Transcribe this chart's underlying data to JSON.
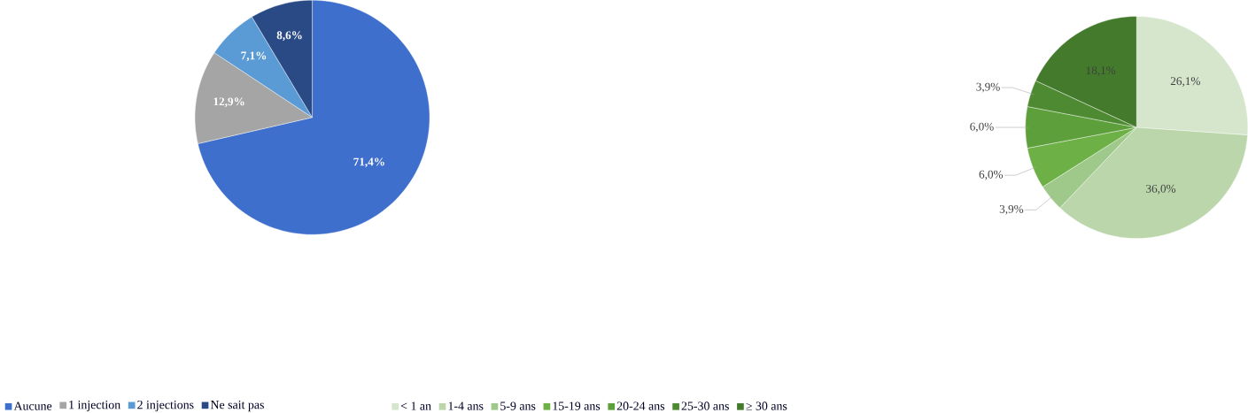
{
  "chart_data": [
    {
      "type": "pie",
      "categories": [
        "Aucune",
        "1 injection",
        "2 injections",
        "Ne sait pas"
      ],
      "values": [
        71.4,
        12.9,
        7.1,
        8.6
      ],
      "colors": [
        "#3f6fcc",
        "#a5a5a5",
        "#5b9bd5",
        "#2a4a86"
      ],
      "value_labels": [
        "71,4%",
        "12,9%",
        "7,1%",
        "8,6%"
      ],
      "legend": "bottom"
    },
    {
      "type": "pie",
      "categories": [
        "< 1 an",
        "1-4 ans",
        "5-9 ans",
        "15-19 ans",
        "20-24 ans",
        "25-30 ans",
        "≥  30 ans"
      ],
      "values": [
        26.1,
        36.0,
        3.9,
        6.0,
        6.0,
        3.9,
        18.1
      ],
      "colors": [
        "#d6e6cd",
        "#bad6aa",
        "#9fc98a",
        "#6cb046",
        "#5c9f3b",
        "#4e8a31",
        "#437a2b"
      ],
      "value_labels": [
        "26,1%",
        "36,0%",
        "3,9%",
        "6,0%",
        "6,0%",
        "3,9%",
        "18,1%"
      ],
      "legend": "bottom"
    }
  ]
}
